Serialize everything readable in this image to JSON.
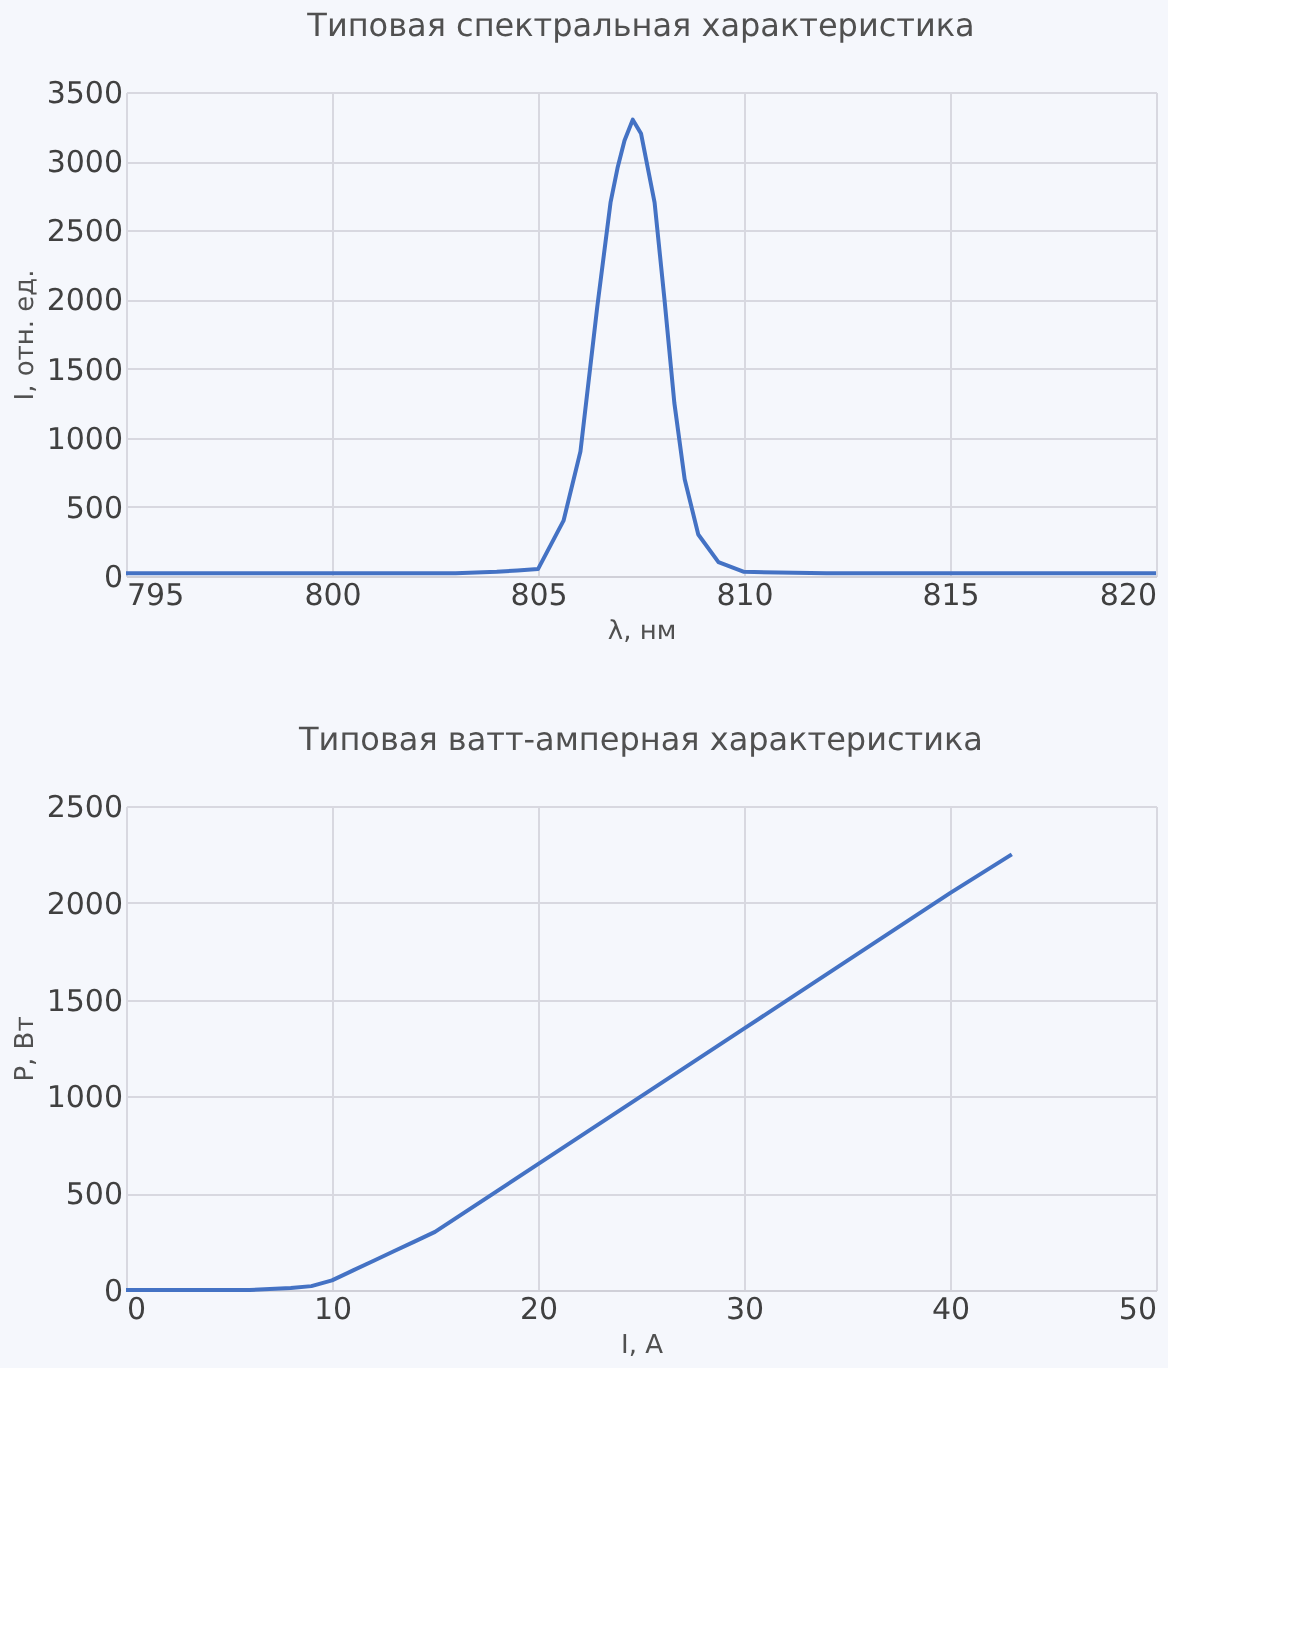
{
  "chart_data": [
    {
      "type": "line",
      "title": "Типовая спектральная характеристика",
      "xlabel": "λ, нм",
      "ylabel": "I, отн. ед.",
      "xlim": [
        795,
        820
      ],
      "xticks": [
        795,
        800,
        805,
        810,
        815,
        820
      ],
      "ylim": [
        0,
        3500
      ],
      "yticks": [
        0,
        500,
        1000,
        1500,
        2000,
        2500,
        3000,
        3500
      ],
      "grid": true,
      "series": [
        {
          "color": "#4472c4",
          "x": [
            795,
            797,
            799,
            801,
            803,
            804,
            804.5,
            805,
            805.62,
            806.03,
            806.44,
            806.76,
            806.93,
            807.1,
            807.3,
            807.5,
            807.83,
            808.07,
            808.31,
            808.56,
            808.89,
            809.38,
            810,
            812,
            814,
            816,
            818,
            820
          ],
          "values": [
            20,
            20,
            20,
            20,
            20,
            30,
            40,
            50,
            400,
            900,
            1950,
            2700,
            2950,
            3150,
            3300,
            3200,
            2700,
            2000,
            1250,
            700,
            300,
            100,
            30,
            20,
            20,
            20,
            20,
            20
          ]
        }
      ]
    },
    {
      "type": "line",
      "title": "Типовая ватт-амперная характеристика",
      "xlabel": "I, А",
      "ylabel": "P, Вт",
      "xlim": [
        0,
        50
      ],
      "xticks": [
        0,
        10,
        20,
        30,
        40,
        50
      ],
      "ylim": [
        0,
        2500
      ],
      "yticks": [
        0,
        500,
        1000,
        1500,
        2000,
        2500
      ],
      "grid": true,
      "series": [
        {
          "color": "#4472c4",
          "x": [
            0,
            2,
            4,
            6,
            8,
            9,
            10,
            11,
            12,
            13,
            14,
            15,
            20,
            25,
            30,
            35,
            40,
            43
          ],
          "values": [
            0,
            0,
            0,
            0,
            10,
            20,
            50,
            100,
            150,
            200,
            250,
            300,
            650,
            1000,
            1350,
            1700,
            2050,
            2250
          ]
        }
      ]
    }
  ]
}
